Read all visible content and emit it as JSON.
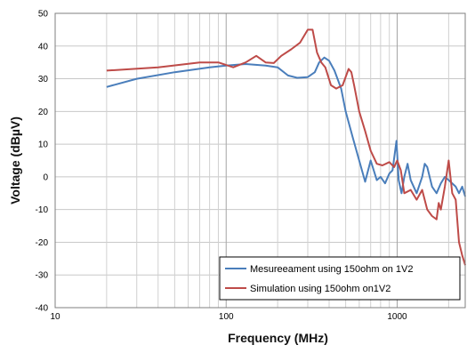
{
  "chart_data": {
    "type": "line",
    "title": "",
    "xlabel": "Frequency (MHz)",
    "ylabel": "Voltage (dBµV)",
    "x_scale": "log",
    "xlim": [
      10,
      2500
    ],
    "ylim": [
      -40,
      50
    ],
    "x_ticks": [
      10,
      100,
      1000
    ],
    "y_ticks": [
      -40,
      -30,
      -20,
      -10,
      0,
      10,
      20,
      30,
      40,
      50
    ],
    "grid": true,
    "legend_position": "bottom-right",
    "series": [
      {
        "name": "Mesureeament using 150ohm on 1V2",
        "color": "#4a7ebb",
        "x": [
          20,
          30,
          50,
          80,
          100,
          130,
          170,
          200,
          230,
          260,
          300,
          330,
          350,
          375,
          400,
          430,
          470,
          500,
          550,
          600,
          650,
          700,
          760,
          800,
          850,
          900,
          940,
          990,
          1020,
          1060,
          1100,
          1150,
          1200,
          1300,
          1400,
          1450,
          1500,
          1600,
          1700,
          1800,
          1900,
          2000,
          2100,
          2200,
          2300,
          2400,
          2500
        ],
        "y": [
          27.5,
          30,
          32,
          33.5,
          34,
          34.5,
          34,
          33.5,
          31,
          30.3,
          30.5,
          32,
          35,
          36.5,
          35.5,
          32.5,
          27,
          20,
          12,
          5,
          -1.5,
          5,
          -1,
          0,
          -2,
          1,
          2,
          11,
          -1,
          -5,
          0,
          4,
          -1,
          -5,
          0,
          4,
          3,
          -3,
          -5,
          -2,
          0,
          -1,
          -2,
          -3,
          -5,
          -3,
          -6
        ]
      },
      {
        "name": "Simulation using 150ohm on1V2",
        "color": "#be4b48",
        "x": [
          20,
          40,
          70,
          90,
          110,
          130,
          150,
          170,
          190,
          210,
          240,
          270,
          300,
          320,
          340,
          360,
          380,
          410,
          440,
          480,
          520,
          540,
          560,
          600,
          650,
          700,
          760,
          820,
          900,
          960,
          1000,
          1050,
          1100,
          1200,
          1300,
          1400,
          1500,
          1600,
          1700,
          1750,
          1800,
          1900,
          2000,
          2100,
          2200,
          2300,
          2400,
          2500
        ],
        "y": [
          32.5,
          33.5,
          35,
          35,
          33.5,
          35,
          37,
          35,
          34.8,
          37,
          39,
          41,
          45,
          45,
          38,
          35,
          33.5,
          28,
          27,
          28,
          33,
          32,
          28,
          20,
          14,
          8,
          4,
          3.5,
          4.5,
          3,
          5,
          2,
          -5,
          -4,
          -7,
          -4,
          -10,
          -12,
          -13,
          -8,
          -10,
          -3,
          5,
          -5,
          -7,
          -20,
          -24,
          -27
        ]
      }
    ]
  }
}
